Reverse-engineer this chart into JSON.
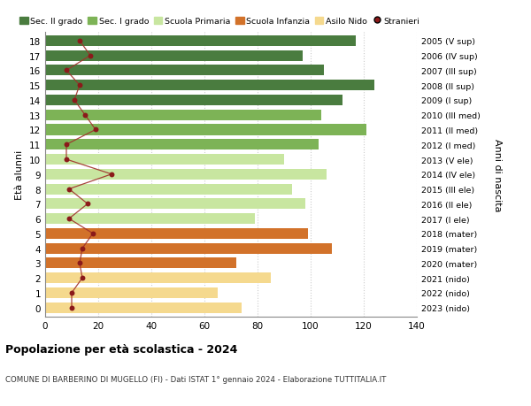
{
  "ages": [
    18,
    17,
    16,
    15,
    14,
    13,
    12,
    11,
    10,
    9,
    8,
    7,
    6,
    5,
    4,
    3,
    2,
    1,
    0
  ],
  "anni_nascita": [
    "2005 (V sup)",
    "2006 (IV sup)",
    "2007 (III sup)",
    "2008 (II sup)",
    "2009 (I sup)",
    "2010 (III med)",
    "2011 (II med)",
    "2012 (I med)",
    "2013 (V ele)",
    "2014 (IV ele)",
    "2015 (III ele)",
    "2016 (II ele)",
    "2017 (I ele)",
    "2018 (mater)",
    "2019 (mater)",
    "2020 (mater)",
    "2021 (nido)",
    "2022 (nido)",
    "2023 (nido)"
  ],
  "bar_values": [
    117,
    97,
    105,
    124,
    112,
    104,
    121,
    103,
    90,
    106,
    93,
    98,
    79,
    99,
    108,
    72,
    85,
    65,
    74
  ],
  "stranieri": [
    13,
    17,
    8,
    13,
    11,
    15,
    19,
    8,
    8,
    25,
    9,
    16,
    9,
    18,
    14,
    13,
    14,
    10,
    10
  ],
  "bar_color_map": {
    "18": "#4a7c3f",
    "17": "#4a7c3f",
    "16": "#4a7c3f",
    "15": "#4a7c3f",
    "14": "#4a7c3f",
    "13": "#7db356",
    "12": "#7db356",
    "11": "#7db356",
    "10": "#c8e6a0",
    "9": "#c8e6a0",
    "8": "#c8e6a0",
    "7": "#c8e6a0",
    "6": "#c8e6a0",
    "5": "#d2722a",
    "4": "#d2722a",
    "3": "#d2722a",
    "2": "#f5d98e",
    "1": "#f5d98e",
    "0": "#f5d98e"
  },
  "stranieri_color": "#8b1a1a",
  "stranieri_line_color": "#a0302a",
  "title": "Popolazione per età scolastica - 2024",
  "subtitle": "COMUNE DI BARBERINO DI MUGELLO (FI) - Dati ISTAT 1° gennaio 2024 - Elaborazione TUTTITALIA.IT",
  "ylabel": "Età alunni",
  "ylabel_right": "Anni di nascita",
  "xlim": [
    0,
    140
  ],
  "xticks": [
    0,
    20,
    40,
    60,
    80,
    100,
    120,
    140
  ],
  "legend_items": [
    {
      "label": "Sec. II grado",
      "color": "#4a7c3f",
      "type": "patch"
    },
    {
      "label": "Sec. I grado",
      "color": "#7db356",
      "type": "patch"
    },
    {
      "label": "Scuola Primaria",
      "color": "#c8e6a0",
      "type": "patch"
    },
    {
      "label": "Scuola Infanzia",
      "color": "#d2722a",
      "type": "patch"
    },
    {
      "label": "Asilo Nido",
      "color": "#f5d98e",
      "type": "patch"
    },
    {
      "label": "Stranieri",
      "color": "#8b1a1a",
      "type": "dot"
    }
  ],
  "bg_color": "#ffffff",
  "bar_height": 0.72,
  "grid_color": "#cccccc"
}
